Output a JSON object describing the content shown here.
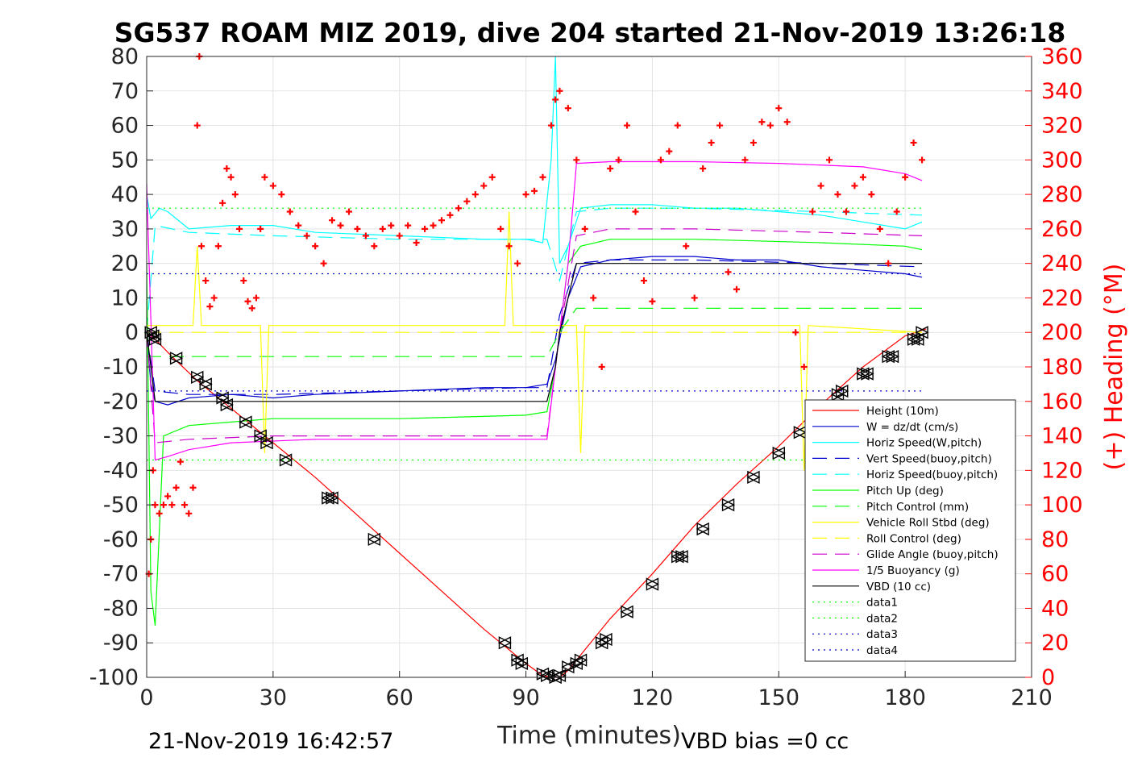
{
  "chart_data": {
    "type": "line",
    "title": "SG537 ROAM MIZ 2019, dive 204 started 21-Nov-2019 13:26:18",
    "xlabel": "Time (minutes)",
    "ylabel": "",
    "ylabel_right": "(+) Heading (°M)",
    "xlim": [
      0,
      210
    ],
    "ylim": [
      -100,
      80
    ],
    "ylim_right": [
      0,
      360
    ],
    "xticks": [
      "0",
      "30",
      "60",
      "90",
      "120",
      "150",
      "180",
      "210"
    ],
    "yticks": [
      "80",
      "70",
      "60",
      "50",
      "40",
      "30",
      "20",
      "10",
      "0",
      "-10",
      "-20",
      "-30",
      "-40",
      "-50",
      "-60",
      "-70",
      "-80",
      "-90",
      "-100"
    ],
    "yticks_right": [
      "360",
      "340",
      "320",
      "300",
      "280",
      "260",
      "240",
      "220",
      "200",
      "180",
      "160",
      "140",
      "120",
      "100",
      "80",
      "60",
      "40",
      "20",
      "0"
    ],
    "grid": true,
    "legend_position": "lower-right",
    "footer_left": "21-Nov-2019 16:42:57",
    "footer_right": "VBD bias =0 cc",
    "series": [
      {
        "name": "Height (10m)",
        "color": "#ff0000",
        "style": "solid",
        "x": [
          0,
          2,
          6,
          12,
          20,
          30,
          40,
          50,
          60,
          70,
          80,
          90,
          94,
          96,
          97,
          98,
          100,
          104,
          110,
          120,
          130,
          140,
          150,
          160,
          170,
          180,
          185
        ],
        "y": [
          0,
          -2,
          -7,
          -14,
          -22,
          -32,
          -42,
          -53,
          -64,
          -75,
          -86,
          -96,
          -99.5,
          -100,
          -100,
          -100,
          -98,
          -92,
          -83,
          -70,
          -56,
          -44,
          -33,
          -21,
          -10,
          -1,
          1
        ]
      },
      {
        "name": "W = dz/dt (cm/s)",
        "color": "#0000cc",
        "style": "solid",
        "x": [
          0,
          1,
          2,
          5,
          10,
          20,
          30,
          40,
          60,
          80,
          90,
          95,
          97,
          100,
          103,
          110,
          120,
          130,
          140,
          150,
          160,
          170,
          180,
          184
        ],
        "y": [
          0,
          -15,
          -20,
          -21,
          -19,
          -18,
          -19,
          -18,
          -17,
          -16,
          -16,
          -15,
          -8,
          10,
          19,
          21,
          22,
          22,
          21,
          21,
          19,
          18,
          17,
          16
        ]
      },
      {
        "name": "Horiz Speed(W,pitch)",
        "color": "#00ffff",
        "style": "solid",
        "x": [
          0,
          1,
          3,
          5,
          10,
          20,
          30,
          40,
          60,
          80,
          90,
          94,
          96,
          97,
          98,
          100,
          103,
          110,
          120,
          130,
          140,
          150,
          160,
          170,
          180,
          184
        ],
        "y": [
          40,
          33,
          36,
          35,
          30,
          31,
          31,
          29,
          28,
          27,
          27,
          26,
          50,
          80,
          20,
          25,
          36,
          37,
          37,
          36,
          36,
          35,
          34,
          32,
          30,
          32
        ]
      },
      {
        "name": "Vert Speed(buoy,pitch)",
        "color": "#0000cc",
        "style": "dash",
        "x": [
          0,
          2,
          10,
          30,
          60,
          90,
          95,
          98,
          102,
          110,
          130,
          160,
          184
        ],
        "y": [
          0,
          -17,
          -18,
          -18,
          -17,
          -16,
          -16,
          5,
          20,
          21,
          21,
          20,
          19
        ]
      },
      {
        "name": "Horiz Speed(buoy,pitch)",
        "color": "#00ffff",
        "style": "dash",
        "x": [
          0,
          2,
          10,
          30,
          60,
          90,
          95,
          98,
          102,
          110,
          130,
          160,
          184
        ],
        "y": [
          0,
          31,
          29,
          28,
          27,
          27,
          27,
          15,
          35,
          36,
          36,
          35,
          34
        ]
      },
      {
        "name": "Pitch Up (deg)",
        "color": "#00ff00",
        "style": "solid",
        "x": [
          0,
          1,
          2,
          4,
          10,
          20,
          30,
          60,
          90,
          95,
          97,
          100,
          103,
          110,
          130,
          160,
          180,
          184
        ],
        "y": [
          20,
          -75,
          -85,
          -30,
          -27,
          -26,
          -25,
          -25,
          -24,
          -23,
          -10,
          20,
          25,
          27,
          27,
          26,
          25,
          24
        ]
      },
      {
        "name": "Pitch Control (mm)",
        "color": "#00ff00",
        "style": "dash",
        "x": [
          0,
          2,
          90,
          95,
          98,
          102,
          184
        ],
        "y": [
          -7,
          -7,
          -7,
          -7,
          0,
          7,
          7
        ]
      },
      {
        "name": "Vehicle Roll Stbd (deg)",
        "color": "#ffff00",
        "style": "solid",
        "x": [
          0,
          5,
          11,
          12,
          13,
          20,
          27,
          28,
          29,
          60,
          85,
          86,
          87,
          95,
          102,
          103,
          104,
          130,
          155,
          156,
          157,
          184
        ],
        "y": [
          2,
          2,
          2,
          25,
          2,
          2,
          2,
          -35,
          2,
          2,
          2,
          35,
          2,
          2,
          2,
          -35,
          2,
          2,
          2,
          -40,
          2,
          0
        ]
      },
      {
        "name": "Roll Control (deg)",
        "color": "#ffff00",
        "style": "dash",
        "x": [
          0,
          184
        ],
        "y": [
          0,
          0
        ]
      },
      {
        "name": "Glide Angle (buoy,pitch)",
        "color": "#cc00cc",
        "style": "dash",
        "x": [
          0,
          2,
          10,
          30,
          60,
          90,
          95,
          98,
          102,
          110,
          130,
          160,
          184
        ],
        "y": [
          0,
          -32,
          -31,
          -30,
          -30,
          -30,
          -30,
          0,
          28,
          30,
          30,
          29,
          28
        ]
      },
      {
        "name": "1/5 Buoyancy (g)",
        "color": "#ff00ff",
        "style": "solid",
        "x": [
          0,
          2,
          5,
          10,
          20,
          40,
          60,
          80,
          90,
          95,
          98,
          100,
          102,
          110,
          130,
          150,
          170,
          180,
          184
        ],
        "y": [
          43,
          -37,
          -36,
          -34,
          -32,
          -31,
          -31,
          -31,
          -31,
          -31,
          0,
          20,
          49,
          49.5,
          49.5,
          49,
          48,
          46,
          44
        ]
      },
      {
        "name": "VBD (10 cc)",
        "color": "#000000",
        "style": "solid",
        "x": [
          0,
          2,
          95,
          97,
          98,
          102,
          184
        ],
        "y": [
          0,
          -20,
          -20,
          -10,
          0,
          20,
          20
        ]
      },
      {
        "name": "data1",
        "color": "#00ff00",
        "style": "dot",
        "x": [
          0,
          184
        ],
        "y": [
          36,
          36
        ]
      },
      {
        "name": "data2",
        "color": "#00ff00",
        "style": "dot",
        "x": [
          0,
          184
        ],
        "y": [
          -37,
          -37
        ]
      },
      {
        "name": "data3",
        "color": "#0000cc",
        "style": "dot",
        "x": [
          0,
          184
        ],
        "y": [
          17,
          17
        ]
      },
      {
        "name": "data4",
        "color": "#0000cc",
        "style": "dot",
        "x": [
          0,
          184
        ],
        "y": [
          -17,
          -17
        ]
      }
    ],
    "heading": {
      "name": "Heading",
      "color": "#ff0000",
      "axis": "right",
      "x": [
        0.5,
        1,
        1.5,
        2,
        3,
        4,
        5,
        6,
        7,
        8,
        9,
        10,
        11,
        12,
        12.5,
        13,
        14,
        15,
        16,
        17,
        18,
        19,
        20,
        21,
        22,
        23,
        24,
        25,
        26,
        27,
        28,
        30,
        32,
        34,
        36,
        38,
        40,
        42,
        44,
        46,
        48,
        50,
        52,
        54,
        56,
        58,
        60,
        62,
        64,
        66,
        68,
        70,
        72,
        74,
        76,
        78,
        80,
        82,
        84,
        86,
        88,
        90,
        92,
        94,
        96,
        97,
        98,
        100,
        102,
        104,
        106,
        108,
        110,
        112,
        114,
        116,
        118,
        120,
        122,
        124,
        126,
        128,
        130,
        132,
        134,
        136,
        138,
        140,
        142,
        144,
        146,
        148,
        150,
        152,
        154,
        156,
        158,
        160,
        162,
        164,
        166,
        168,
        170,
        172,
        174,
        176,
        178,
        180,
        182,
        184
      ],
      "y": [
        60,
        80,
        120,
        100,
        95,
        100,
        105,
        100,
        110,
        125,
        100,
        95,
        110,
        320,
        360,
        250,
        230,
        215,
        220,
        250,
        275,
        295,
        290,
        280,
        260,
        230,
        218,
        214,
        220,
        260,
        290,
        285,
        280,
        270,
        262,
        256,
        250,
        240,
        265,
        262,
        270,
        260,
        256,
        250,
        260,
        262,
        256,
        262,
        252,
        260,
        262,
        265,
        268,
        272,
        276,
        280,
        285,
        290,
        260,
        250,
        240,
        280,
        282,
        290,
        320,
        335,
        340,
        330,
        300,
        260,
        220,
        180,
        295,
        300,
        320,
        270,
        230,
        218,
        300,
        305,
        320,
        250,
        220,
        295,
        310,
        320,
        235,
        225,
        300,
        310,
        322,
        320,
        330,
        322,
        200,
        180,
        270,
        285,
        300,
        280,
        270,
        285,
        290,
        280,
        260,
        240,
        270,
        290,
        310,
        300
      ]
    },
    "markers": {
      "name": "dive triangles",
      "color": "#000000",
      "x": [
        1,
        1.5,
        2,
        7,
        12,
        14,
        18,
        19,
        23.5,
        27,
        28.5,
        33,
        43,
        44,
        54,
        85,
        88,
        89,
        94,
        95,
        97,
        98,
        100,
        102,
        103,
        108,
        109,
        114,
        120,
        126,
        127,
        132,
        138,
        144,
        150,
        155,
        160,
        164,
        165,
        170,
        171,
        176,
        177,
        182,
        183,
        184
      ],
      "y": [
        0,
        -1,
        -2,
        -7.5,
        -13,
        -15,
        -19,
        -21,
        -26,
        -30,
        -32,
        -37,
        -48,
        -48,
        -60,
        -90,
        -95,
        -96,
        -99,
        -99.5,
        -100,
        -99.5,
        -97,
        -96,
        -95,
        -90,
        -89,
        -81,
        -73,
        -65,
        -65,
        -57,
        -50,
        -42,
        -35,
        -29,
        -23,
        -18,
        -17,
        -12,
        -12,
        -7,
        -7,
        -2,
        -2,
        0
      ]
    }
  }
}
